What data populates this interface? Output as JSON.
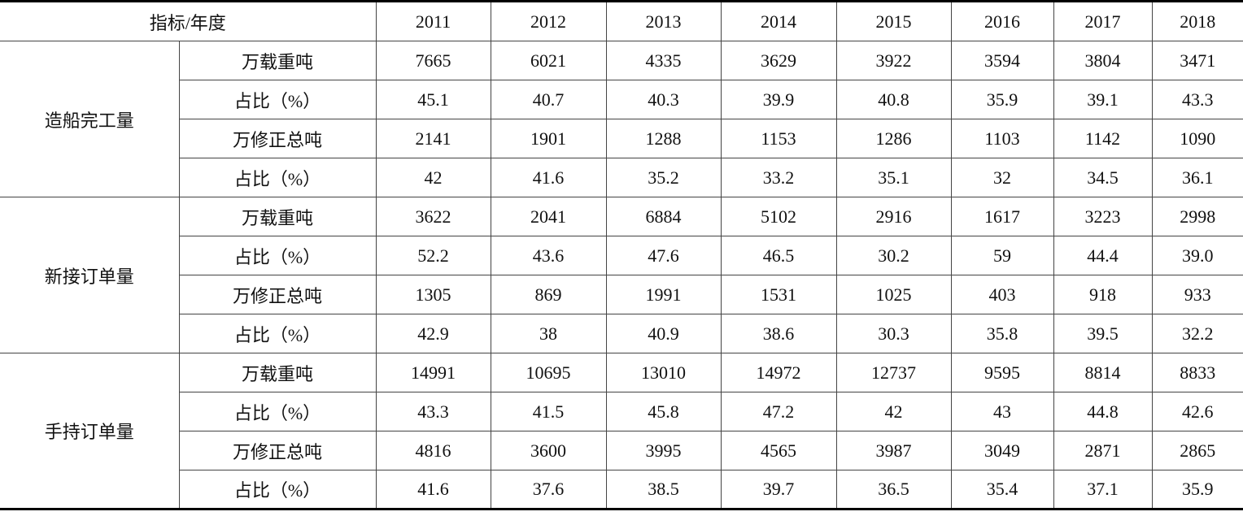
{
  "header": {
    "label": "指标/年度",
    "years": [
      "2011",
      "2012",
      "2013",
      "2014",
      "2015",
      "2016",
      "2017",
      "2018"
    ]
  },
  "groups": [
    {
      "name": "造船完工量",
      "rows": [
        {
          "metric": "万载重吨",
          "values": [
            "7665",
            "6021",
            "4335",
            "3629",
            "3922",
            "3594",
            "3804",
            "3471"
          ]
        },
        {
          "metric": "占比（%）",
          "values": [
            "45.1",
            "40.7",
            "40.3",
            "39.9",
            "40.8",
            "35.9",
            "39.1",
            "43.3"
          ]
        },
        {
          "metric": "万修正总吨",
          "values": [
            "2141",
            "1901",
            "1288",
            "1153",
            "1286",
            "1103",
            "1142",
            "1090"
          ]
        },
        {
          "metric": "占比（%）",
          "values": [
            "42",
            "41.6",
            "35.2",
            "33.2",
            "35.1",
            "32",
            "34.5",
            "36.1"
          ]
        }
      ]
    },
    {
      "name": "新接订单量",
      "rows": [
        {
          "metric": "万载重吨",
          "values": [
            "3622",
            "2041",
            "6884",
            "5102",
            "2916",
            "1617",
            "3223",
            "2998"
          ]
        },
        {
          "metric": "占比（%）",
          "values": [
            "52.2",
            "43.6",
            "47.6",
            "46.5",
            "30.2",
            "59",
            "44.4",
            "39.0"
          ]
        },
        {
          "metric": "万修正总吨",
          "values": [
            "1305",
            "869",
            "1991",
            "1531",
            "1025",
            "403",
            "918",
            "933"
          ]
        },
        {
          "metric": "占比（%）",
          "values": [
            "42.9",
            "38",
            "40.9",
            "38.6",
            "30.3",
            "35.8",
            "39.5",
            "32.2"
          ]
        }
      ]
    },
    {
      "name": "手持订单量",
      "rows": [
        {
          "metric": "万载重吨",
          "values": [
            "14991",
            "10695",
            "13010",
            "14972",
            "12737",
            "9595",
            "8814",
            "8833"
          ]
        },
        {
          "metric": "占比（%）",
          "values": [
            "43.3",
            "41.5",
            "45.8",
            "47.2",
            "42",
            "43",
            "44.8",
            "42.6"
          ]
        },
        {
          "metric": "万修正总吨",
          "values": [
            "4816",
            "3600",
            "3995",
            "4565",
            "3987",
            "3049",
            "2871",
            "2865"
          ]
        },
        {
          "metric": "占比（%）",
          "values": [
            "41.6",
            "37.6",
            "38.5",
            "39.7",
            "36.5",
            "35.4",
            "37.1",
            "35.9"
          ]
        }
      ]
    }
  ]
}
